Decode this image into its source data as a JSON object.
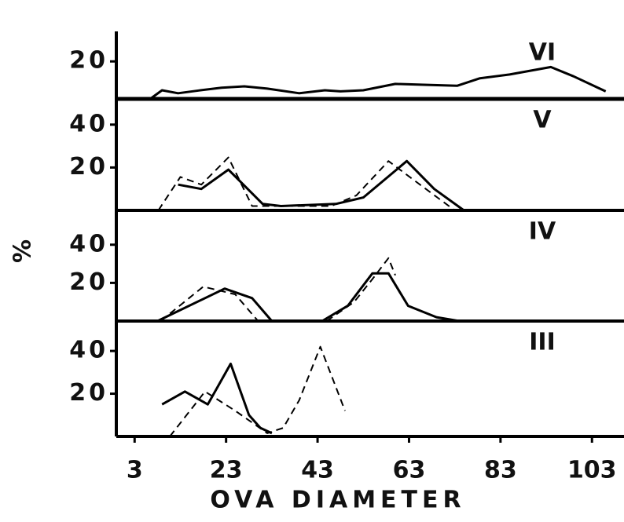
{
  "chart_data": [
    {
      "type": "line",
      "title": "VI",
      "xlim": [
        -1,
        110
      ],
      "ylim": [
        0,
        36
      ],
      "yticks": [
        20
      ],
      "series": [
        {
          "color": "#000000",
          "dash": false,
          "x": [
            6.4,
            9,
            12.5,
            17,
            22,
            27,
            32,
            39,
            44.6,
            48,
            53,
            60,
            67,
            73.5,
            78.5,
            85,
            94,
            99,
            106
          ],
          "values": [
            0,
            4.6,
            3,
            4.5,
            6,
            6.7,
            5.5,
            3,
            4.6,
            4,
            4.6,
            8,
            7.5,
            7,
            11,
            13,
            17,
            12,
            4
          ]
        }
      ]
    },
    {
      "type": "line",
      "title": "V",
      "xlim": [
        -1,
        110
      ],
      "ylim": [
        0,
        52
      ],
      "yticks": [
        20,
        40
      ],
      "series": [
        {
          "color": "#000000",
          "dash": true,
          "x": [
            8.2,
            13,
            17.6,
            23.5,
            28.7,
            34,
            46,
            51.5,
            58.5,
            65.4,
            73
          ],
          "values": [
            0,
            15.6,
            12,
            24.7,
            2,
            2,
            2,
            7,
            23,
            12,
            0
          ]
        },
        {
          "color": "#000000",
          "dash": false,
          "x": [
            12.5,
            17.6,
            23.5,
            31,
            35,
            47,
            53,
            62.5,
            68.5,
            75
          ],
          "values": [
            12,
            10,
            19,
            3,
            2,
            3,
            6,
            23,
            10,
            0
          ]
        }
      ]
    },
    {
      "type": "line",
      "title": "IV",
      "xlim": [
        -1,
        110
      ],
      "ylim": [
        0,
        58
      ],
      "yticks": [
        20,
        40
      ],
      "series": [
        {
          "color": "#000000",
          "dash": false,
          "x": [
            8,
            22.7,
            28.7,
            33,
            null,
            44,
            49.6,
            55,
            58.5,
            62.8,
            69,
            74
          ],
          "values": [
            0,
            17,
            12,
            0,
            null,
            0,
            8,
            25,
            25,
            8,
            2,
            0
          ]
        },
        {
          "color": "#000000",
          "dash": true,
          "x": [
            8.7,
            18,
            25,
            30,
            null,
            45,
            51,
            55,
            58.5,
            60
          ],
          "values": [
            0,
            18,
            14,
            0,
            null,
            0,
            10,
            22,
            33,
            24
          ]
        }
      ]
    },
    {
      "type": "line",
      "title": "III",
      "xlim": [
        -1,
        110
      ],
      "ylim": [
        0,
        54
      ],
      "yticks": [
        20,
        40
      ],
      "xticks": [
        3,
        23,
        43,
        63,
        83,
        103
      ],
      "xlabel": "OVA DIAMETER",
      "ylabel": "%",
      "series": [
        {
          "color": "#000000",
          "dash": false,
          "x": [
            9,
            14,
            19,
            24,
            28,
            30.5,
            33
          ],
          "values": [
            15,
            21,
            15,
            34,
            10,
            4,
            1.5
          ]
        },
        {
          "color": "#000000",
          "dash": true,
          "x": [
            10.7,
            18.4,
            25,
            32,
            35.5,
            39,
            43.6,
            49
          ],
          "values": [
            0,
            21,
            12,
            1.5,
            4,
            17,
            42,
            12
          ]
        }
      ]
    }
  ]
}
